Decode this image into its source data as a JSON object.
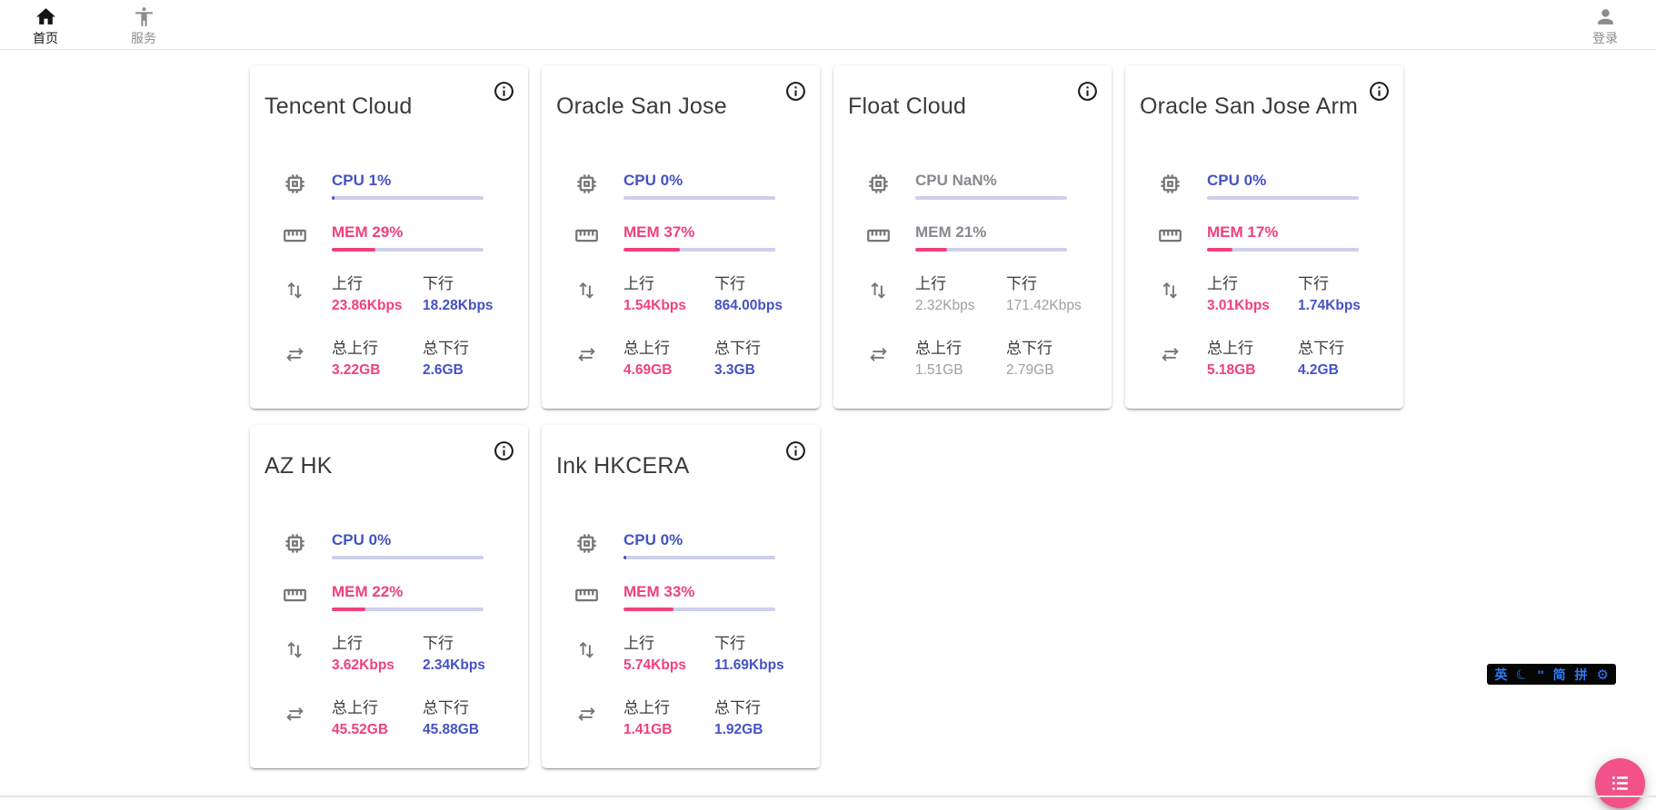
{
  "nav": {
    "home": {
      "label": "首页"
    },
    "services": {
      "label": "服务"
    },
    "login": {
      "label": "登录"
    }
  },
  "metric_labels": {
    "upload": "上行",
    "download": "下行",
    "total_upload": "总上行",
    "total_download": "总下行"
  },
  "servers": [
    {
      "name": "Tencent Cloud",
      "cpu_label": "CPU 1%",
      "cpu_bar_pct": 1.5,
      "mem_label": "MEM 29%",
      "mem_bar_pct": 29,
      "upload_speed": "23.86Kbps",
      "download_speed": "18.28Kbps",
      "total_upload": "3.22GB",
      "total_download": "2.6GB",
      "offline": false
    },
    {
      "name": "Oracle San Jose",
      "cpu_label": "CPU 0%",
      "cpu_bar_pct": 0,
      "mem_label": "MEM 37%",
      "mem_bar_pct": 37,
      "upload_speed": "1.54Kbps",
      "download_speed": "864.00bps",
      "total_upload": "4.69GB",
      "total_download": "3.3GB",
      "offline": false
    },
    {
      "name": "Float Cloud",
      "cpu_label": "CPU NaN%",
      "cpu_bar_pct": 0,
      "mem_label": "MEM 21%",
      "mem_bar_pct": 21,
      "upload_speed": "2.32Kbps",
      "download_speed": "171.42Kbps",
      "total_upload": "1.51GB",
      "total_download": "2.79GB",
      "offline": true
    },
    {
      "name": "Oracle San Jose Arm",
      "cpu_label": "CPU 0%",
      "cpu_bar_pct": 0,
      "mem_label": "MEM 17%",
      "mem_bar_pct": 17,
      "upload_speed": "3.01Kbps",
      "download_speed": "1.74Kbps",
      "total_upload": "5.18GB",
      "total_download": "4.2GB",
      "offline": false
    },
    {
      "name": "AZ HK",
      "cpu_label": "CPU 0%",
      "cpu_bar_pct": 0,
      "mem_label": "MEM 22%",
      "mem_bar_pct": 22,
      "upload_speed": "3.62Kbps",
      "download_speed": "2.34Kbps",
      "total_upload": "45.52GB",
      "total_download": "45.88GB",
      "offline": false
    },
    {
      "name": "Ink HKCERA",
      "cpu_label": "CPU 0%",
      "cpu_bar_pct": 1.5,
      "mem_label": "MEM 33%",
      "mem_bar_pct": 33,
      "upload_speed": "5.74Kbps",
      "download_speed": "11.69Kbps",
      "total_upload": "1.41GB",
      "total_download": "1.92GB",
      "offline": false
    }
  ],
  "ime_bar": {
    "lang": "英",
    "moon_icon": "moon-icon",
    "punctuation": "''",
    "charset": "简",
    "scheme": "拼",
    "settings_icon": "gear-icon"
  },
  "fab": {
    "icon": "list-icon"
  },
  "colors": {
    "cpu_blue": "#4452c4",
    "mem_pink": "#f0417c",
    "bar_track": "#cdd0ec",
    "fab_pink": "#f25289",
    "offline_label": "#86898d",
    "offline_value": "#9aa0a6",
    "ime_blue": "#2e7bf6",
    "icon_gray": "#757575"
  }
}
